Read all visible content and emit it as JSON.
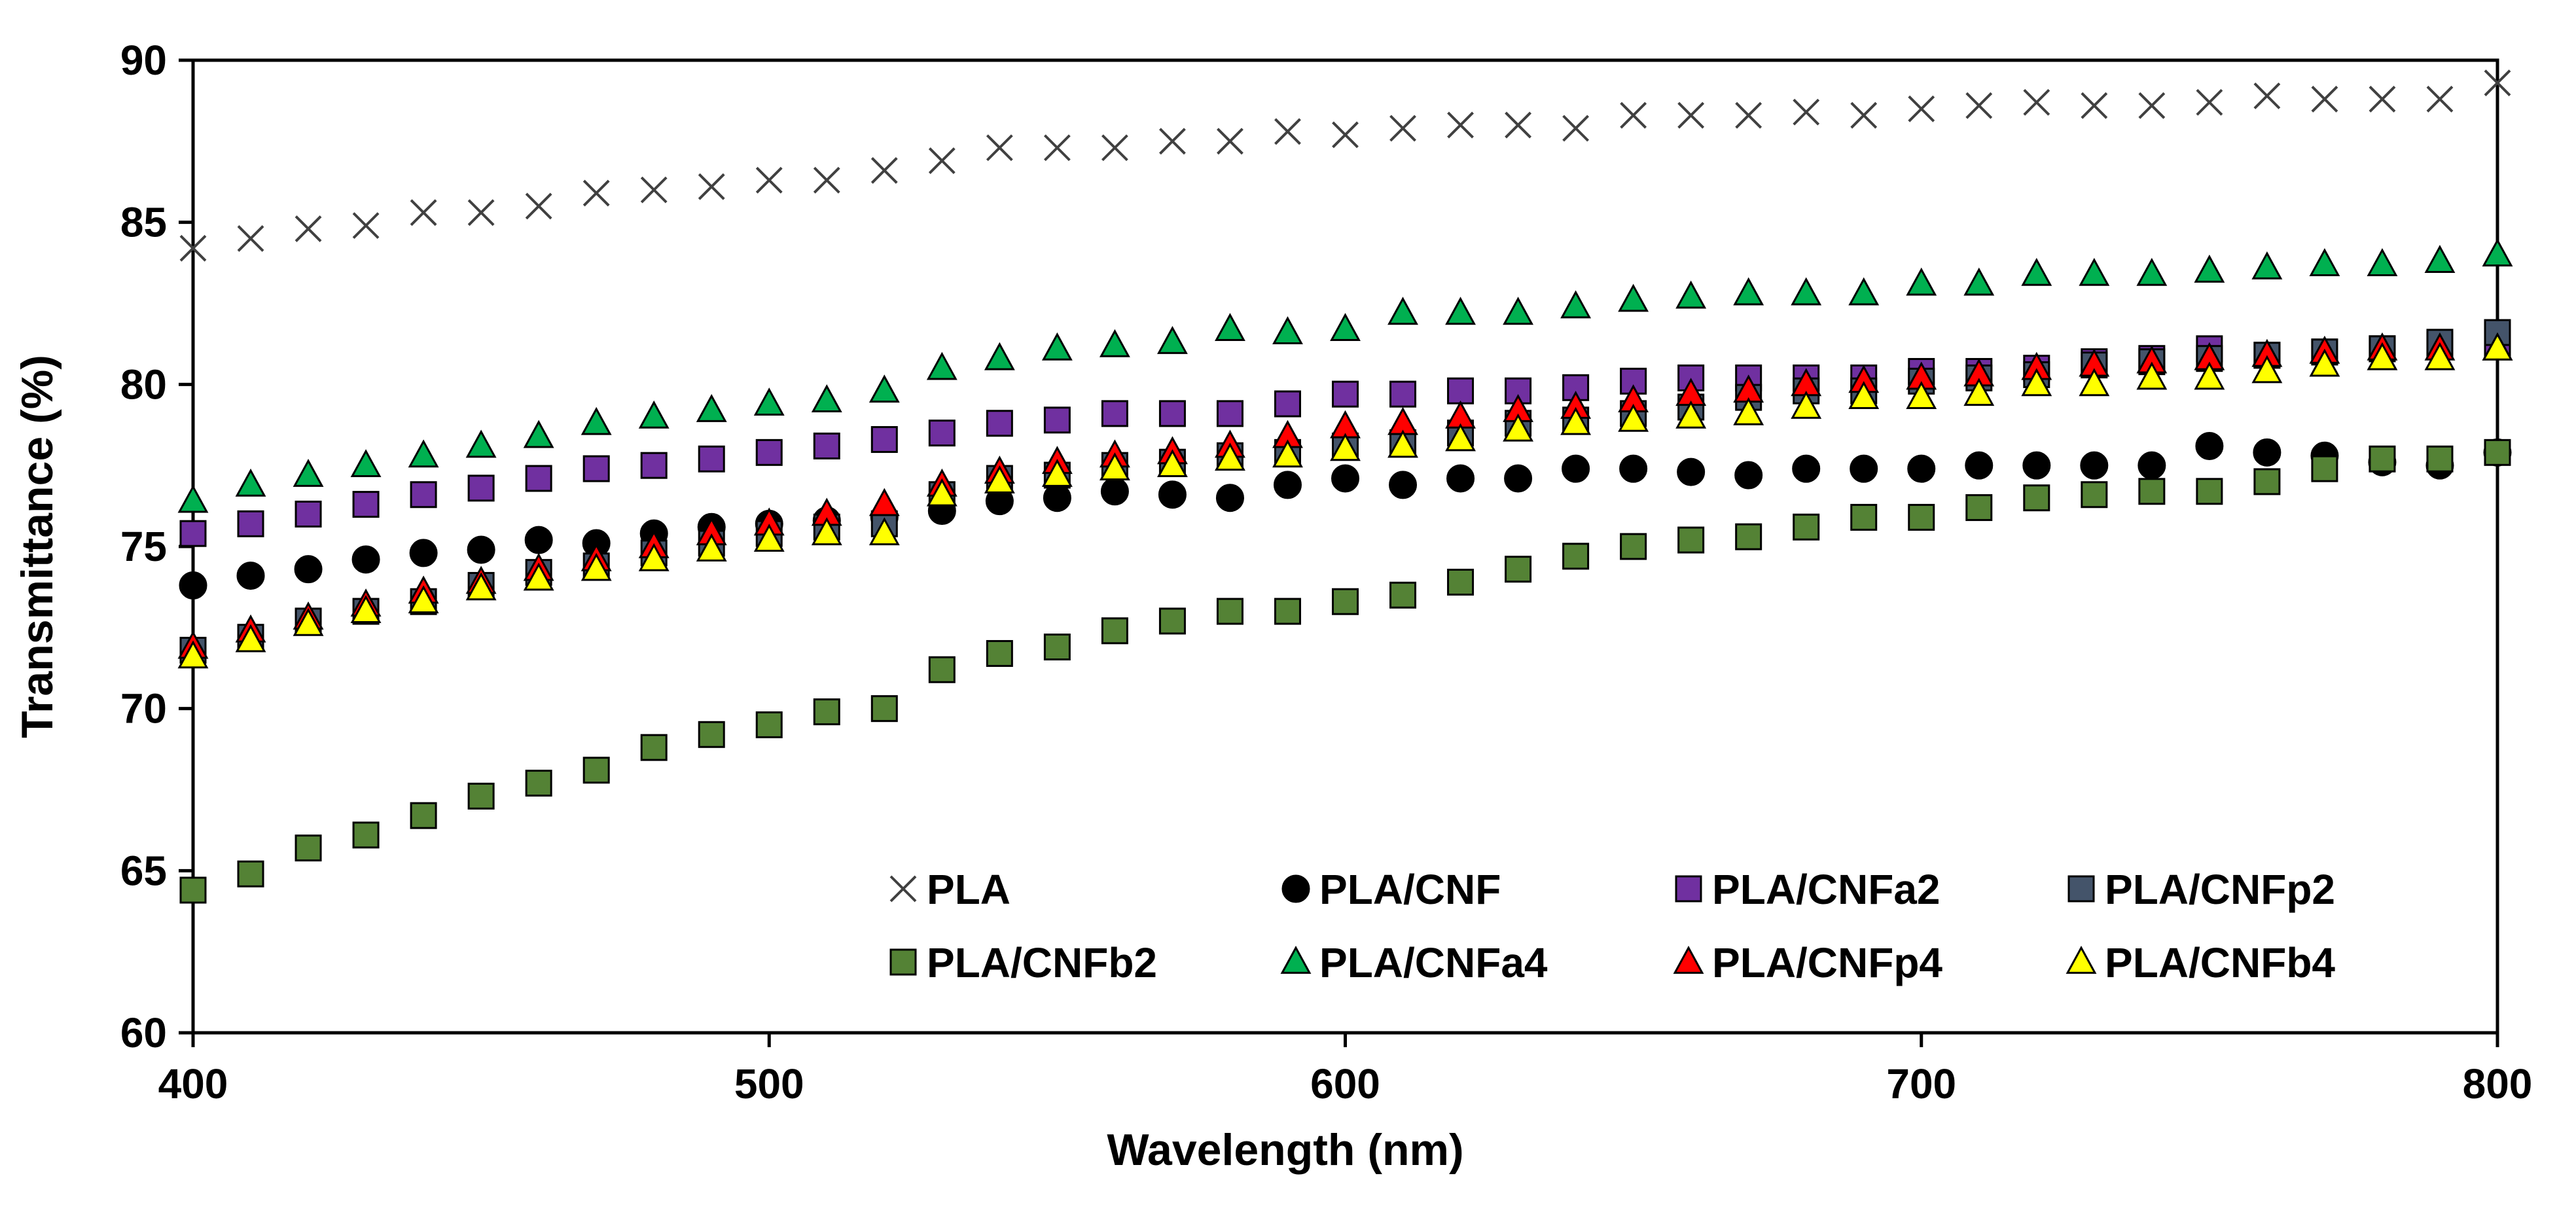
{
  "chart_data": {
    "type": "scatter",
    "title": "",
    "xlabel": "Wavelength (nm)",
    "ylabel": "Transmittance (%)",
    "xlim": [
      400,
      800
    ],
    "ylim": [
      60,
      90
    ],
    "xticks": [
      400,
      500,
      600,
      700,
      800
    ],
    "yticks": [
      60,
      65,
      70,
      75,
      80,
      85,
      90
    ],
    "xtick_labels": [
      "400",
      "500",
      "600",
      "700",
      "800"
    ],
    "ytick_labels": [
      "60",
      "65",
      "70",
      "75",
      "80",
      "85",
      "90"
    ],
    "grid": false,
    "legend_position": "bottom-right, inside plot, 2 rows x 4 columns",
    "x": [
      400,
      410,
      420,
      430,
      440,
      450,
      460,
      470,
      480,
      490,
      500,
      510,
      520,
      530,
      540,
      550,
      560,
      570,
      580,
      590,
      600,
      610,
      620,
      630,
      640,
      650,
      660,
      670,
      680,
      690,
      700,
      710,
      720,
      730,
      740,
      750,
      760,
      770,
      780,
      790,
      800
    ],
    "series": [
      {
        "name": "PLA",
        "marker": "x",
        "color": "#404040",
        "values": [
          84.2,
          84.5,
          84.8,
          84.9,
          85.3,
          85.3,
          85.5,
          85.9,
          86.0,
          86.1,
          86.3,
          86.3,
          86.6,
          86.9,
          87.3,
          87.3,
          87.3,
          87.5,
          87.5,
          87.8,
          87.7,
          87.9,
          88.0,
          88.0,
          87.9,
          88.3,
          88.3,
          88.3,
          88.4,
          88.3,
          88.5,
          88.6,
          88.7,
          88.6,
          88.6,
          88.7,
          88.9,
          88.8,
          88.8,
          88.8,
          89.3
        ]
      },
      {
        "name": "PLA/CNF",
        "marker": "circle",
        "color": "#000000",
        "values": [
          73.8,
          74.1,
          74.3,
          74.6,
          74.8,
          74.9,
          75.2,
          75.1,
          75.4,
          75.6,
          75.7,
          75.8,
          75.9,
          76.1,
          76.4,
          76.5,
          76.7,
          76.6,
          76.5,
          76.9,
          77.1,
          76.9,
          77.1,
          77.1,
          77.4,
          77.4,
          77.3,
          77.2,
          77.4,
          77.4,
          77.4,
          77.5,
          77.5,
          77.5,
          77.5,
          78.1,
          77.9,
          77.8,
          77.6,
          77.5,
          77.9
        ]
      },
      {
        "name": "PLA/CNFa2",
        "marker": "square",
        "color": "#7030A0",
        "values": [
          75.4,
          75.7,
          76.0,
          76.3,
          76.6,
          76.8,
          77.1,
          77.4,
          77.5,
          77.7,
          77.9,
          78.1,
          78.3,
          78.5,
          78.8,
          78.9,
          79.1,
          79.1,
          79.1,
          79.4,
          79.7,
          79.7,
          79.8,
          79.8,
          79.9,
          80.1,
          80.2,
          80.2,
          80.2,
          80.2,
          80.4,
          80.4,
          80.5,
          80.7,
          80.8,
          81.1,
          80.9,
          81.0,
          81.1,
          81.2,
          81.2
        ]
      },
      {
        "name": "PLA/CNFp2",
        "marker": "square",
        "color": "#44546A",
        "values": [
          71.8,
          72.2,
          72.7,
          73.0,
          73.3,
          73.8,
          74.2,
          74.4,
          74.8,
          75.1,
          75.4,
          75.6,
          75.7,
          76.6,
          77.1,
          77.2,
          77.5,
          77.6,
          77.8,
          77.9,
          78.1,
          78.2,
          78.5,
          78.8,
          78.9,
          79.1,
          79.3,
          79.6,
          79.8,
          79.8,
          80.1,
          80.2,
          80.3,
          80.6,
          80.7,
          80.8,
          80.9,
          81.0,
          81.1,
          81.3,
          81.6
        ]
      },
      {
        "name": "PLA/CNFb2",
        "marker": "square",
        "color": "#548235",
        "values": [
          64.4,
          64.9,
          65.7,
          66.1,
          66.7,
          67.3,
          67.7,
          68.1,
          68.8,
          69.2,
          69.5,
          69.9,
          70.0,
          71.2,
          71.7,
          71.9,
          72.4,
          72.7,
          73.0,
          73.0,
          73.3,
          73.5,
          73.9,
          74.3,
          74.7,
          75.0,
          75.2,
          75.3,
          75.6,
          75.9,
          75.9,
          76.2,
          76.5,
          76.6,
          76.7,
          76.7,
          77.0,
          77.4,
          77.7,
          77.7,
          77.9
        ]
      },
      {
        "name": "PLA/CNFa4",
        "marker": "triangle",
        "color": "#00B050",
        "values": [
          76.4,
          76.9,
          77.2,
          77.5,
          77.8,
          78.1,
          78.4,
          78.8,
          79.0,
          79.2,
          79.4,
          79.5,
          79.8,
          80.5,
          80.8,
          81.1,
          81.2,
          81.3,
          81.7,
          81.6,
          81.7,
          82.2,
          82.2,
          82.2,
          82.4,
          82.6,
          82.7,
          82.8,
          82.8,
          82.8,
          83.1,
          83.1,
          83.4,
          83.4,
          83.4,
          83.5,
          83.6,
          83.7,
          83.7,
          83.8,
          84.0
        ]
      },
      {
        "name": "PLA/CNFp4",
        "marker": "triangle",
        "color": "#FF0000",
        "values": [
          71.9,
          72.4,
          72.8,
          73.2,
          73.6,
          73.9,
          74.3,
          74.6,
          75.0,
          75.4,
          75.7,
          76.0,
          76.3,
          76.9,
          77.3,
          77.6,
          77.8,
          77.9,
          78.1,
          78.4,
          78.7,
          78.8,
          79.0,
          79.2,
          79.3,
          79.5,
          79.7,
          79.8,
          80.0,
          80.1,
          80.2,
          80.3,
          80.5,
          80.6,
          80.7,
          80.8,
          80.9,
          81.0,
          81.1,
          81.1,
          81.1
        ]
      },
      {
        "name": "PLA/CNFb4",
        "marker": "triangle",
        "color": "#FFFF00",
        "values": [
          71.6,
          72.1,
          72.6,
          73.0,
          73.3,
          73.7,
          74.0,
          74.3,
          74.6,
          74.9,
          75.2,
          75.4,
          75.4,
          76.6,
          77.0,
          77.2,
          77.4,
          77.5,
          77.7,
          77.8,
          78.0,
          78.1,
          78.3,
          78.6,
          78.8,
          78.9,
          79.0,
          79.1,
          79.3,
          79.6,
          79.6,
          79.7,
          80.0,
          80.0,
          80.2,
          80.2,
          80.4,
          80.6,
          80.8,
          80.8,
          81.1
        ]
      }
    ]
  }
}
